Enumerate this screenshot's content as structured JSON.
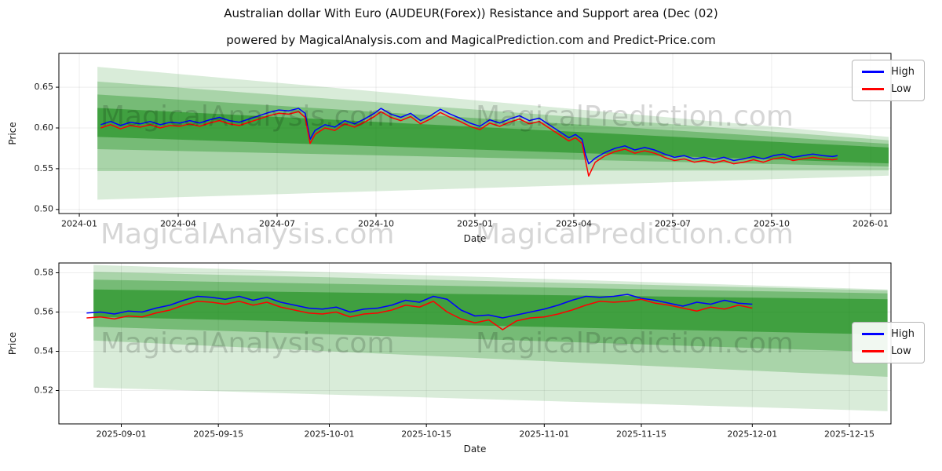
{
  "figure": {
    "title": "Australian dollar With Euro (AUDEUR(Forex)) Resistance and Support area (Dec (02)",
    "subtitle": "powered by MagicalAnalysis.com and MagicalPrediction.com and Predict-Price.com"
  },
  "watermarks": {
    "analysis": "MagicalAnalysis.com",
    "prediction": "MagicalPrediction.com"
  },
  "chart_data": [
    {
      "type": "line",
      "xlabel": "Date",
      "ylabel": "Price",
      "grid": true,
      "legend_position": "upper right",
      "xlim": [
        -0.62,
        24.62
      ],
      "ylim": [
        0.495,
        0.6915
      ],
      "band_color": "#008000",
      "xticks": [
        {
          "v": 0,
          "label": "2024-01"
        },
        {
          "v": 3,
          "label": "2024-04"
        },
        {
          "v": 6,
          "label": "2024-07"
        },
        {
          "v": 9,
          "label": "2024-10"
        },
        {
          "v": 12,
          "label": "2025-01"
        },
        {
          "v": 15,
          "label": "2025-04"
        },
        {
          "v": 18,
          "label": "2025-07"
        },
        {
          "v": 21,
          "label": "2025-10"
        },
        {
          "v": 24,
          "label": "2026-01"
        }
      ],
      "yticks": [
        {
          "v": 0.5,
          "label": "0.50"
        },
        {
          "v": 0.55,
          "label": "0.55"
        },
        {
          "v": 0.6,
          "label": "0.60"
        },
        {
          "v": 0.65,
          "label": "0.65"
        }
      ],
      "bands": [
        {
          "x0": 0.55,
          "x1": 24.55,
          "top": [
            0.675,
            0.589
          ],
          "bottom": [
            0.512,
            0.5415
          ],
          "alpha": 0.15
        },
        {
          "x0": 0.55,
          "x1": 24.55,
          "top": [
            0.657,
            0.585
          ],
          "bottom": [
            0.547,
            0.548
          ],
          "alpha": 0.22
        },
        {
          "x0": 0.55,
          "x1": 24.55,
          "top": [
            0.641,
            0.5805
          ],
          "bottom": [
            0.574,
            0.5525
          ],
          "alpha": 0.3
        },
        {
          "x0": 0.55,
          "x1": 24.55,
          "top": [
            0.6245,
            0.576
          ],
          "bottom": [
            0.589,
            0.5565
          ],
          "alpha": 0.45
        }
      ],
      "series": [
        {
          "name": "High",
          "color": "#0000ff",
          "x": [
            0.65,
            0.95,
            1.25,
            1.55,
            1.85,
            2.15,
            2.45,
            2.75,
            3.05,
            3.35,
            3.65,
            3.95,
            4.25,
            4.55,
            4.85,
            5.15,
            5.45,
            5.75,
            6.05,
            6.35,
            6.65,
            6.85,
            7.0,
            7.15,
            7.45,
            7.75,
            8.05,
            8.35,
            8.65,
            8.95,
            9.15,
            9.45,
            9.75,
            10.05,
            10.35,
            10.65,
            10.95,
            11.25,
            11.55,
            11.85,
            12.15,
            12.45,
            12.75,
            13.05,
            13.35,
            13.65,
            13.95,
            14.25,
            14.55,
            14.85,
            15.05,
            15.25,
            15.35,
            15.45,
            15.65,
            15.95,
            16.25,
            16.55,
            16.85,
            17.15,
            17.45,
            17.75,
            18.05,
            18.35,
            18.65,
            18.95,
            19.25,
            19.55,
            19.85,
            20.15,
            20.45,
            20.75,
            21.05,
            21.35,
            21.65,
            21.95,
            22.25,
            22.55,
            22.85,
            23.0
          ],
          "y": [
            0.604,
            0.608,
            0.603,
            0.607,
            0.605,
            0.608,
            0.604,
            0.607,
            0.606,
            0.609,
            0.606,
            0.61,
            0.613,
            0.609,
            0.607,
            0.611,
            0.615,
            0.619,
            0.622,
            0.621,
            0.624,
            0.618,
            0.586,
            0.597,
            0.604,
            0.601,
            0.609,
            0.605,
            0.611,
            0.618,
            0.624,
            0.617,
            0.613,
            0.618,
            0.609,
            0.615,
            0.623,
            0.617,
            0.612,
            0.606,
            0.602,
            0.61,
            0.606,
            0.611,
            0.615,
            0.609,
            0.612,
            0.604,
            0.596,
            0.588,
            0.592,
            0.586,
            0.568,
            0.556,
            0.563,
            0.57,
            0.575,
            0.578,
            0.573,
            0.576,
            0.573,
            0.568,
            0.564,
            0.566,
            0.562,
            0.564,
            0.561,
            0.564,
            0.56,
            0.562,
            0.565,
            0.562,
            0.566,
            0.568,
            0.564,
            0.566,
            0.568,
            0.566,
            0.565,
            0.566
          ]
        },
        {
          "name": "Low",
          "color": "#ff0000",
          "x": [
            0.65,
            0.95,
            1.25,
            1.55,
            1.85,
            2.15,
            2.45,
            2.75,
            3.05,
            3.35,
            3.65,
            3.95,
            4.25,
            4.55,
            4.85,
            5.15,
            5.45,
            5.75,
            6.05,
            6.35,
            6.65,
            6.85,
            7.0,
            7.15,
            7.45,
            7.75,
            8.05,
            8.35,
            8.65,
            8.95,
            9.15,
            9.45,
            9.75,
            10.05,
            10.35,
            10.65,
            10.95,
            11.25,
            11.55,
            11.85,
            12.15,
            12.45,
            12.75,
            13.05,
            13.35,
            13.65,
            13.95,
            14.25,
            14.55,
            14.85,
            15.05,
            15.25,
            15.35,
            15.45,
            15.65,
            15.95,
            16.25,
            16.55,
            16.85,
            17.15,
            17.45,
            17.75,
            18.05,
            18.35,
            18.65,
            18.95,
            19.25,
            19.55,
            19.85,
            20.15,
            20.45,
            20.75,
            21.05,
            21.35,
            21.65,
            21.95,
            22.25,
            22.55,
            22.85,
            23.0
          ],
          "y": [
            0.6,
            0.604,
            0.599,
            0.603,
            0.601,
            0.604,
            0.6,
            0.603,
            0.602,
            0.605,
            0.602,
            0.606,
            0.609,
            0.605,
            0.603,
            0.607,
            0.611,
            0.615,
            0.618,
            0.617,
            0.62,
            0.613,
            0.581,
            0.592,
            0.6,
            0.597,
            0.605,
            0.601,
            0.607,
            0.614,
            0.62,
            0.613,
            0.609,
            0.614,
            0.605,
            0.611,
            0.619,
            0.613,
            0.608,
            0.602,
            0.598,
            0.606,
            0.602,
            0.607,
            0.611,
            0.605,
            0.608,
            0.6,
            0.592,
            0.584,
            0.588,
            0.581,
            0.561,
            0.541,
            0.558,
            0.566,
            0.571,
            0.574,
            0.569,
            0.572,
            0.569,
            0.564,
            0.56,
            0.562,
            0.558,
            0.56,
            0.557,
            0.56,
            0.556,
            0.558,
            0.561,
            0.558,
            0.562,
            0.564,
            0.56,
            0.562,
            0.564,
            0.562,
            0.561,
            0.562
          ]
        }
      ]
    },
    {
      "type": "line",
      "xlabel": "Date",
      "ylabel": "Price",
      "grid": true,
      "legend_position": "right",
      "xlim": [
        -9,
        111
      ],
      "ylim": [
        0.503,
        0.585
      ],
      "band_color": "#008000",
      "xticks": [
        {
          "v": 0,
          "label": "2025-09-01"
        },
        {
          "v": 14,
          "label": "2025-09-15"
        },
        {
          "v": 30,
          "label": "2025-10-01"
        },
        {
          "v": 44,
          "label": "2025-10-15"
        },
        {
          "v": 61,
          "label": "2025-11-01"
        },
        {
          "v": 75,
          "label": "2025-11-15"
        },
        {
          "v": 91,
          "label": "2025-12-01"
        },
        {
          "v": 105,
          "label": "2025-12-15"
        }
      ],
      "yticks": [
        {
          "v": 0.52,
          "label": "0.52"
        },
        {
          "v": 0.54,
          "label": "0.54"
        },
        {
          "v": 0.56,
          "label": "0.56"
        },
        {
          "v": 0.58,
          "label": "0.58"
        }
      ],
      "bands": [
        {
          "x0": -4,
          "x1": 110.5,
          "top": [
            0.584,
            0.5715
          ],
          "bottom": [
            0.5215,
            0.5095
          ],
          "alpha": 0.15
        },
        {
          "x0": -4,
          "x1": 110.5,
          "top": [
            0.5805,
            0.571
          ],
          "bottom": [
            0.5455,
            0.527
          ],
          "alpha": 0.22
        },
        {
          "x0": -4,
          "x1": 110.5,
          "top": [
            0.5765,
            0.5695
          ],
          "bottom": [
            0.5525,
            0.5395
          ],
          "alpha": 0.3
        },
        {
          "x0": -4,
          "x1": 110.5,
          "top": [
            0.5715,
            0.5665
          ],
          "bottom": [
            0.5575,
            0.5485
          ],
          "alpha": 0.45
        }
      ],
      "series": [
        {
          "name": "High",
          "color": "#0000ff",
          "x": [
            -5,
            -3,
            -1,
            1,
            3,
            5,
            7,
            9,
            11,
            13,
            15,
            17,
            19,
            21,
            23,
            25,
            27,
            29,
            31,
            33,
            35,
            37,
            39,
            41,
            43,
            45,
            47,
            49,
            51,
            53,
            55,
            57,
            59,
            61,
            63,
            65,
            67,
            69,
            71,
            73,
            75,
            77,
            79,
            81,
            83,
            85,
            87,
            89,
            91
          ],
          "y": [
            0.5595,
            0.56,
            0.559,
            0.5605,
            0.56,
            0.562,
            0.5635,
            0.566,
            0.568,
            0.5675,
            0.5665,
            0.568,
            0.566,
            0.5675,
            0.565,
            0.5635,
            0.562,
            0.5615,
            0.5625,
            0.56,
            0.5615,
            0.562,
            0.5635,
            0.566,
            0.565,
            0.568,
            0.5665,
            0.561,
            0.558,
            0.5585,
            0.557,
            0.5585,
            0.56,
            0.5615,
            0.5635,
            0.566,
            0.568,
            0.5675,
            0.568,
            0.569,
            0.567,
            0.566,
            0.5645,
            0.563,
            0.565,
            0.564,
            0.566,
            0.5645,
            0.564
          ]
        },
        {
          "name": "Low",
          "color": "#ff0000",
          "x": [
            -5,
            -3,
            -1,
            1,
            3,
            5,
            7,
            9,
            11,
            13,
            15,
            17,
            19,
            21,
            23,
            25,
            27,
            29,
            31,
            33,
            35,
            37,
            39,
            41,
            43,
            45,
            47,
            49,
            51,
            53,
            55,
            57,
            59,
            61,
            63,
            65,
            67,
            69,
            71,
            73,
            75,
            77,
            79,
            81,
            83,
            85,
            87,
            89,
            91
          ],
          "y": [
            0.557,
            0.5575,
            0.5565,
            0.558,
            0.5575,
            0.5595,
            0.561,
            0.5635,
            0.5655,
            0.565,
            0.564,
            0.5655,
            0.5635,
            0.565,
            0.5625,
            0.561,
            0.5595,
            0.559,
            0.56,
            0.5575,
            0.559,
            0.5595,
            0.561,
            0.5635,
            0.5625,
            0.5655,
            0.56,
            0.5565,
            0.5545,
            0.556,
            0.551,
            0.5555,
            0.557,
            0.5575,
            0.559,
            0.561,
            0.5635,
            0.5655,
            0.565,
            0.5655,
            0.5665,
            0.5645,
            0.5635,
            0.562,
            0.5605,
            0.5625,
            0.5615,
            0.5635,
            0.562
          ]
        }
      ]
    }
  ]
}
